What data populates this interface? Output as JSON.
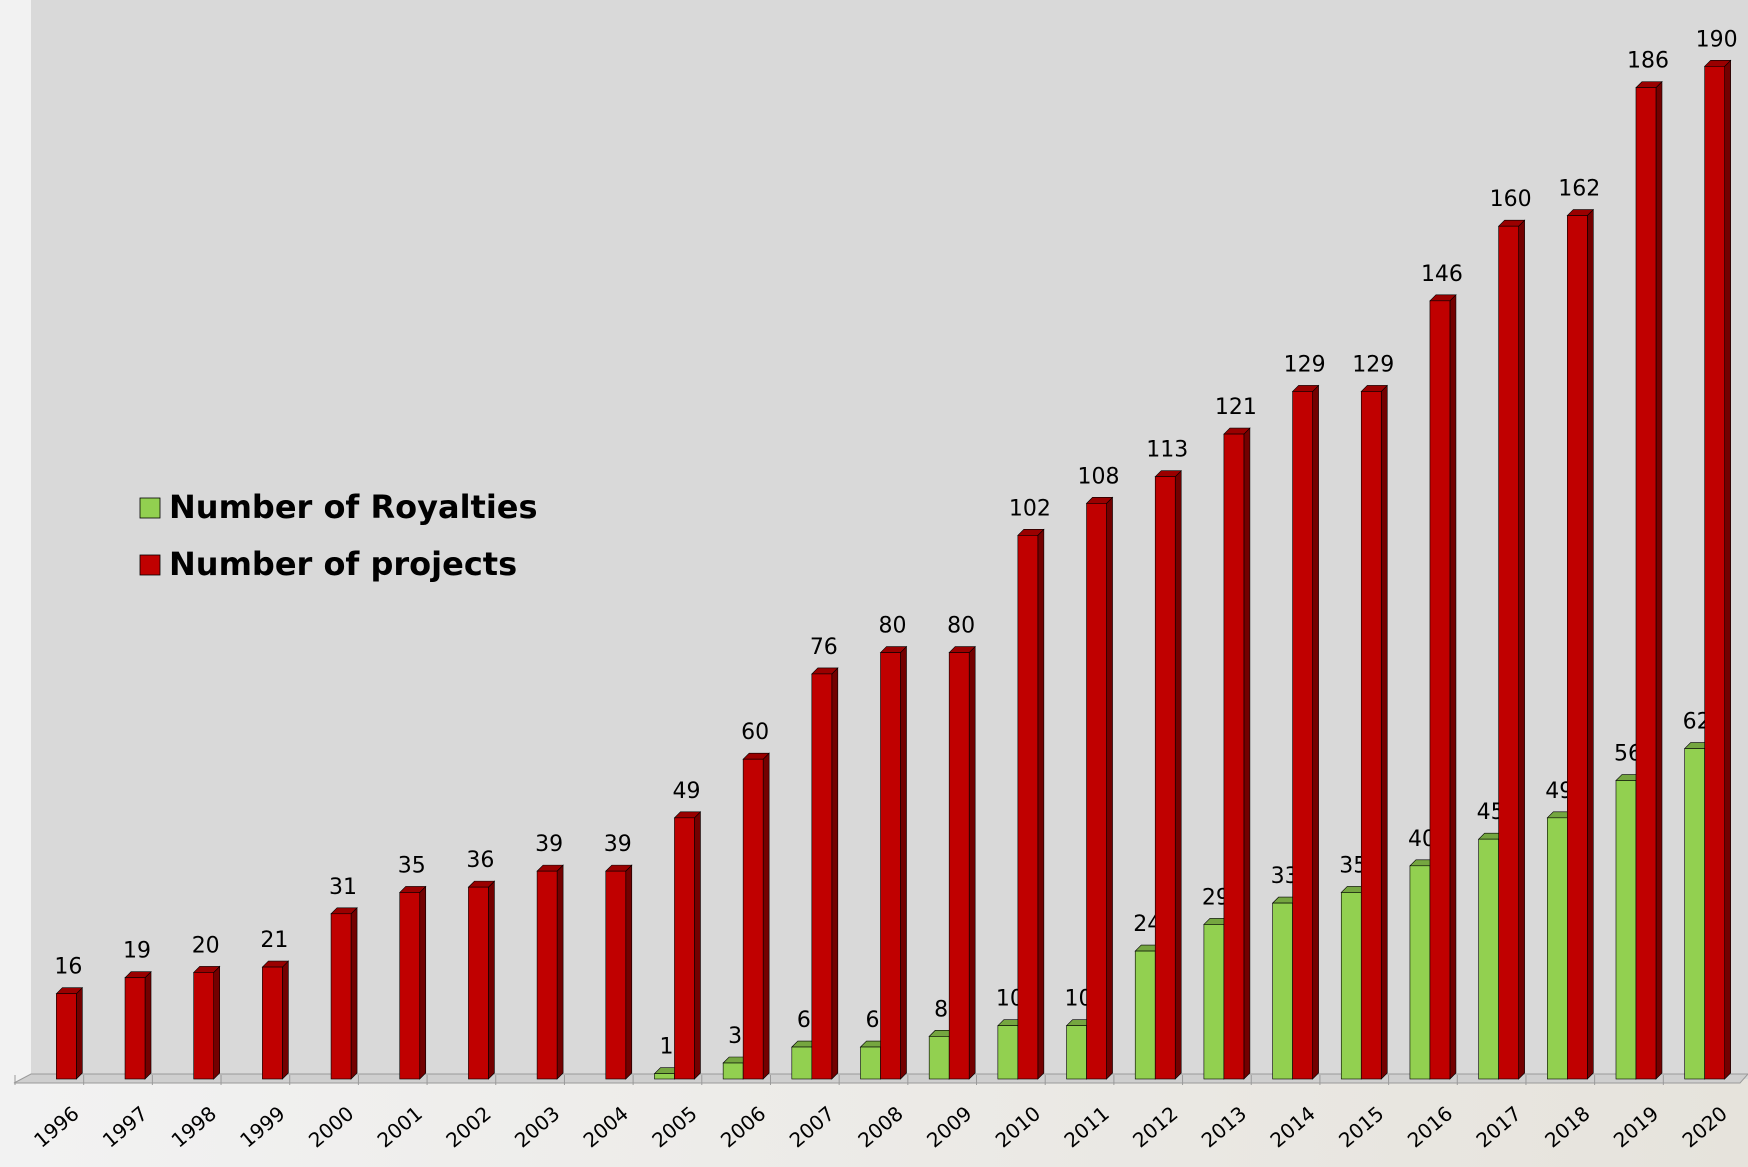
{
  "chart_data": {
    "type": "bar",
    "categories": [
      "1996",
      "1997",
      "1998",
      "1999",
      "2000",
      "2001",
      "2002",
      "2003",
      "2004",
      "2005",
      "2006",
      "2007",
      "2008",
      "2009",
      "2010",
      "2011",
      "2012",
      "2013",
      "2014",
      "2015",
      "2016",
      "2017",
      "2018",
      "2019",
      "2020"
    ],
    "series": [
      {
        "name": "Number of Royalties",
        "color": "#92d050",
        "values": [
          null,
          null,
          null,
          null,
          null,
          null,
          null,
          null,
          null,
          1,
          3,
          6,
          6,
          8,
          10,
          10,
          24,
          29,
          33,
          35,
          40,
          45,
          49,
          56,
          62
        ]
      },
      {
        "name": "Number of projects",
        "color": "#c00000",
        "values": [
          16,
          19,
          20,
          21,
          31,
          35,
          36,
          39,
          39,
          49,
          60,
          76,
          80,
          80,
          102,
          108,
          113,
          121,
          129,
          129,
          146,
          160,
          162,
          186,
          190
        ]
      }
    ],
    "ylim": [
      0,
      200
    ],
    "legend": "left",
    "grid": false
  }
}
